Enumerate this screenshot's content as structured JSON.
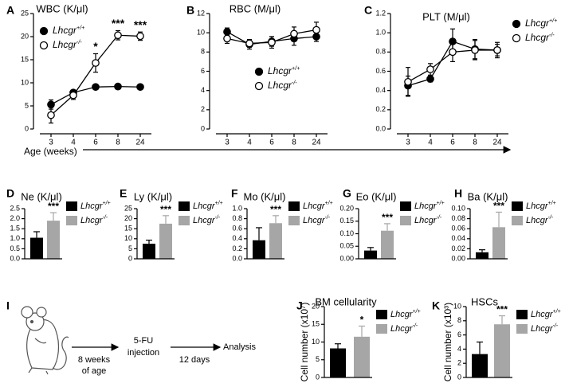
{
  "chart_data": [
    {
      "panel": "A",
      "type": "line",
      "title": "WBC (K/μl)",
      "xlabel": "Age (weeks)",
      "categories": [
        "3",
        "4",
        "6",
        "8",
        "24"
      ],
      "ylim": [
        0,
        25
      ],
      "yticks": [
        0,
        5,
        10,
        15,
        20,
        25
      ],
      "legend": "upper left",
      "series": [
        {
          "name": "Lhcgr+/+",
          "color": "#000000",
          "marker": "filled",
          "values": [
            5.3,
            7.9,
            9.1,
            9.2,
            9.1
          ],
          "errors": [
            1.0,
            0.5,
            0.3,
            0.3,
            0.3
          ]
        },
        {
          "name": "Lhcgr-/-",
          "color": "#000000",
          "marker": "open",
          "values": [
            3.0,
            7.3,
            14.3,
            20.3,
            20.1
          ],
          "errors": [
            1.7,
            0.9,
            2.0,
            1.0,
            0.9
          ]
        }
      ],
      "annotations": [
        {
          "text": "*",
          "x": "6"
        },
        {
          "text": "***",
          "x": "8"
        },
        {
          "text": "***",
          "x": "24"
        }
      ]
    },
    {
      "panel": "B",
      "type": "line",
      "title": "RBC (M/μl)",
      "categories": [
        "3",
        "4",
        "6",
        "8",
        "24"
      ],
      "ylim": [
        0,
        12
      ],
      "yticks": [
        0,
        2,
        4,
        6,
        8,
        10,
        12
      ],
      "legend": "lower center",
      "series": [
        {
          "name": "Lhcgr+/+",
          "color": "#000000",
          "marker": "filled",
          "values": [
            10.1,
            8.8,
            9.1,
            9.4,
            9.6
          ],
          "errors": [
            0.4,
            0.5,
            0.5,
            0.7,
            0.5
          ]
        },
        {
          "name": "Lhcgr-/-",
          "color": "#000000",
          "marker": "open",
          "values": [
            9.4,
            8.9,
            9.0,
            9.9,
            10.3
          ],
          "errors": [
            0.5,
            0.4,
            0.6,
            0.7,
            0.8
          ]
        }
      ]
    },
    {
      "panel": "C",
      "type": "line",
      "title": "PLT (M/μl)",
      "categories": [
        "3",
        "4",
        "6",
        "8",
        "24"
      ],
      "ylim": [
        0,
        1.2
      ],
      "yticks": [
        {
          "value": 0,
          "label": "0.0"
        },
        0.2,
        0.4,
        0.6,
        0.8,
        {
          "value": 1,
          "label": "1.0"
        },
        1.2
      ],
      "legend": "outside upper right",
      "series": [
        {
          "name": "Lhcgr+/+",
          "color": "#000000",
          "marker": "filled",
          "values": [
            0.45,
            0.52,
            0.91,
            0.83,
            0.82
          ],
          "errors": [
            0.1,
            0.03,
            0.13,
            0.1,
            0.08
          ]
        },
        {
          "name": "Lhcgr-/-",
          "color": "#000000",
          "marker": "open",
          "values": [
            0.49,
            0.62,
            0.8,
            0.82,
            0.82
          ],
          "errors": [
            0.15,
            0.06,
            0.1,
            0.1,
            0.06
          ]
        }
      ]
    },
    {
      "panel": "D",
      "type": "bar",
      "title": "Ne (K/μl)",
      "ylim": [
        0,
        2.5
      ],
      "yticks": [
        {
          "value": 0,
          "label": "0.0"
        },
        0.5,
        {
          "value": 1,
          "label": "1.0"
        },
        1.5,
        {
          "value": 2,
          "label": "2.0"
        },
        2.5
      ],
      "legend": "outside right",
      "annotation": "***",
      "series": [
        {
          "name": "Lhcgr+/+",
          "color": "#000000",
          "values": [
            1.05
          ],
          "errors": [
            0.3
          ]
        },
        {
          "name": "Lhcgr-/-",
          "color": "#a6a6a6",
          "values": [
            1.9
          ],
          "errors": [
            0.4
          ]
        }
      ]
    },
    {
      "panel": "E",
      "type": "bar",
      "title": "Ly (K/μl)",
      "ylim": [
        0,
        25
      ],
      "yticks": [
        0,
        5,
        10,
        15,
        20,
        25
      ],
      "legend": "outside right",
      "annotation": "***",
      "series": [
        {
          "name": "Lhcgr+/+",
          "color": "#000000",
          "values": [
            7.5
          ],
          "errors": [
            1.8
          ]
        },
        {
          "name": "Lhcgr-/-",
          "color": "#a6a6a6",
          "values": [
            17.5
          ],
          "errors": [
            4
          ]
        }
      ]
    },
    {
      "panel": "F",
      "type": "bar",
      "title": "Mo (K/μl)",
      "ylim": [
        0,
        1
      ],
      "yticks": [
        {
          "value": 0,
          "label": "0.0"
        },
        0.2,
        0.4,
        0.6,
        0.8,
        {
          "value": 1,
          "label": "1.0"
        }
      ],
      "legend": "outside right",
      "annotation": "***",
      "series": [
        {
          "name": "Lhcgr+/+",
          "color": "#000000",
          "values": [
            0.37
          ],
          "errors": [
            0.25
          ]
        },
        {
          "name": "Lhcgr-/-",
          "color": "#a6a6a6",
          "values": [
            0.71
          ],
          "errors": [
            0.15
          ]
        }
      ]
    },
    {
      "panel": "G",
      "type": "bar",
      "title": "Eo (K/μl)",
      "ylim": [
        0,
        0.2
      ],
      "yticks": [
        {
          "value": 0,
          "label": "0.00"
        },
        0.05,
        {
          "value": 0.1,
          "label": "0.10"
        },
        0.15,
        {
          "value": 0.2,
          "label": "0.20"
        }
      ],
      "legend": "outside right",
      "annotation": "***",
      "series": [
        {
          "name": "Lhcgr+/+",
          "color": "#000000",
          "values": [
            0.033
          ],
          "errors": [
            0.012
          ]
        },
        {
          "name": "Lhcgr-/-",
          "color": "#a6a6a6",
          "values": [
            0.112
          ],
          "errors": [
            0.028
          ]
        }
      ]
    },
    {
      "panel": "H",
      "type": "bar",
      "title": "Ba (K/μl)",
      "ylim": [
        0,
        0.1
      ],
      "yticks": [
        {
          "value": 0,
          "label": "0.00"
        },
        0.02,
        0.04,
        0.06,
        0.08,
        {
          "value": 0.1,
          "label": "0.10"
        }
      ],
      "legend": "outside right",
      "annotation": "***",
      "series": [
        {
          "name": "Lhcgr+/+",
          "color": "#000000",
          "values": [
            0.013
          ],
          "errors": [
            0.005
          ]
        },
        {
          "name": "Lhcgr-/-",
          "color": "#a6a6a6",
          "values": [
            0.063
          ],
          "errors": [
            0.03
          ]
        }
      ]
    },
    {
      "panel": "J",
      "type": "bar",
      "title": "BM cellularity",
      "ylabel": "Cell number (x10⁷)",
      "ylim": [
        0,
        20
      ],
      "yticks": [
        0,
        5,
        10,
        15,
        20
      ],
      "legend": "outside right",
      "annotation": "*",
      "series": [
        {
          "name": "Lhcgr+/+",
          "color": "#000000",
          "values": [
            8.2
          ],
          "errors": [
            1.3
          ]
        },
        {
          "name": "Lhcgr-/-",
          "color": "#a6a6a6",
          "values": [
            11.5
          ],
          "errors": [
            3
          ]
        }
      ]
    },
    {
      "panel": "K",
      "type": "bar",
      "title": "HSCs",
      "ylabel": "Cell number (x10³)",
      "ylim": [
        0,
        10
      ],
      "yticks": [
        0,
        2,
        4,
        6,
        8,
        10
      ],
      "legend": "outside right",
      "annotation": "***",
      "series": [
        {
          "name": "Lhcgr+/+",
          "color": "#000000",
          "values": [
            3.3
          ],
          "errors": [
            1.7
          ]
        },
        {
          "name": "Lhcgr-/-",
          "color": "#a6a6a6",
          "values": [
            7.5
          ],
          "errors": [
            1.2
          ]
        }
      ]
    }
  ],
  "diagram": {
    "panel": "I",
    "texts": [
      "8 weeks",
      "of age",
      "5-FU",
      "injection",
      "12 days",
      "Analysis"
    ]
  }
}
